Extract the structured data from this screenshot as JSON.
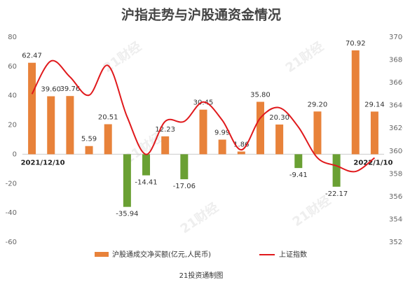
{
  "chart_data": {
    "type": "bar-line",
    "title": "沪指走势与沪股通资金情况",
    "source": "21投资通制图",
    "watermark": "21财经",
    "categories": [
      "2021/12/10",
      null,
      null,
      null,
      null,
      null,
      null,
      null,
      null,
      null,
      null,
      null,
      null,
      null,
      null,
      null,
      null,
      null,
      "2022/1/10"
    ],
    "series": [
      {
        "name": "沪股通成交净买额(亿元,人民币)",
        "color": "#e8823a",
        "negative_color": "#6aa033",
        "values": [
          62.47,
          39.6,
          39.76,
          5.59,
          20.51,
          -35.94,
          -14.41,
          12.23,
          -17.06,
          30.45,
          9.99,
          1.86,
          35.8,
          20.3,
          -9.41,
          29.2,
          -22.17,
          70.92,
          29.14
        ],
        "value_labels": [
          "62.47",
          "39.60",
          "39.76",
          "5.59",
          "20.51",
          "-35.94",
          "-14.41",
          "12.23",
          "-17.06",
          "30.45",
          "9.99",
          "1.86",
          "35.80",
          "20.30",
          "-9.41",
          "29.20",
          "-22.17",
          "70.92",
          "29.14"
        ]
      },
      {
        "name": "上证指数",
        "color": "#e0191c",
        "axis": "y2",
        "values": [
          3650,
          3679,
          3665,
          3649,
          3675,
          3630,
          3597,
          3626,
          3626,
          3643,
          3627,
          3601,
          3629,
          3638,
          3621,
          3594,
          3587,
          3582,
          3594
        ]
      }
    ],
    "ylim": [
      -60,
      80
    ],
    "yticks": [
      -60,
      -40,
      -20,
      0,
      20,
      40,
      60,
      80
    ],
    "y2lim": [
      3520,
      3700
    ],
    "y2ticks": [
      3520,
      3540,
      3560,
      3580,
      3600,
      3620,
      3640,
      3660,
      3680,
      3700
    ]
  }
}
